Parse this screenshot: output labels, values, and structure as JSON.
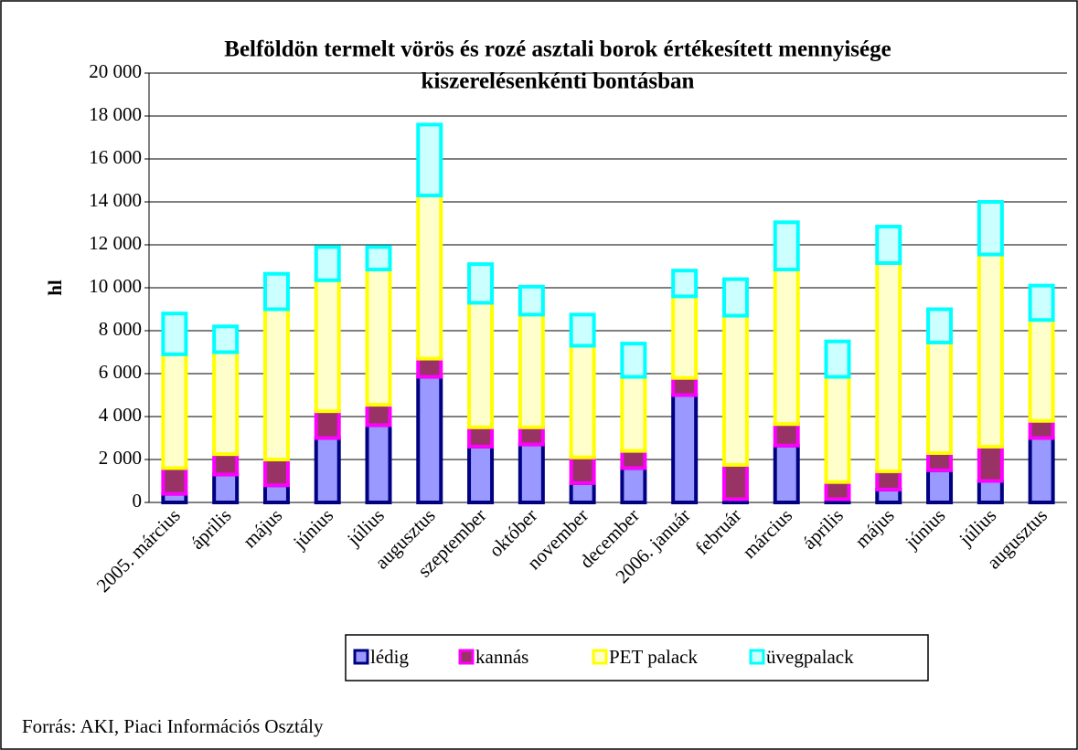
{
  "chart_data": {
    "type": "stacked_bar",
    "title": [
      "Belföldön termelt vörös és rozé asztali borok értékesített mennyisége",
      "kiszerelésenkénti bontásban"
    ],
    "ylabel": "hl",
    "source": "Forrás: AKI, Piaci Információs Osztály",
    "categories": [
      "2005. március",
      "április",
      "május",
      "június",
      "július",
      "augusztus",
      "szeptember",
      "október",
      "november",
      "december",
      "2006. január",
      "február",
      "március",
      "április",
      "május",
      "június",
      "július",
      "augusztus"
    ],
    "series": [
      {
        "name": "lédig",
        "color": "#9999ff",
        "border": "#000080",
        "values": [
          400,
          1300,
          800,
          3000,
          3600,
          5850,
          2600,
          2700,
          900,
          1600,
          5000,
          150,
          2650,
          150,
          600,
          1500,
          1000,
          3000
        ]
      },
      {
        "name": "kannás",
        "color": "#993366",
        "border": "#ff00ff",
        "values": [
          1200,
          950,
          1200,
          1250,
          950,
          850,
          900,
          800,
          1200,
          800,
          800,
          1600,
          1000,
          800,
          850,
          800,
          1600,
          800
        ]
      },
      {
        "name": "PET palack",
        "color": "#ffffcc",
        "border": "#ffff00",
        "values": [
          5300,
          4750,
          7000,
          6100,
          6300,
          7600,
          5800,
          5250,
          5200,
          3450,
          3800,
          6950,
          7200,
          4900,
          9700,
          5150,
          8950,
          4700
        ]
      },
      {
        "name": "üvegpalack",
        "color": "#ccffff",
        "border": "#00ffff",
        "values": [
          1900,
          1200,
          1650,
          1550,
          1050,
          3300,
          1800,
          1300,
          1450,
          1550,
          1200,
          1700,
          2200,
          1650,
          1700,
          1550,
          2450,
          1600
        ]
      }
    ],
    "ylim": [
      0,
      20000
    ],
    "yticks": [
      0,
      {
        "value": 2000,
        "label": "2 000"
      },
      {
        "value": 4000,
        "label": "4 000"
      },
      {
        "value": 6000,
        "label": "6 000"
      },
      {
        "value": 8000,
        "label": "8 000"
      },
      {
        "value": 10000,
        "label": "10 000"
      },
      {
        "value": 12000,
        "label": "12 000"
      },
      {
        "value": 14000,
        "label": "14 000"
      },
      {
        "value": 16000,
        "label": "16 000"
      },
      {
        "value": 18000,
        "label": "18 000"
      },
      {
        "value": 20000,
        "label": "20 000"
      }
    ],
    "grid": true,
    "legend": "bottom"
  }
}
